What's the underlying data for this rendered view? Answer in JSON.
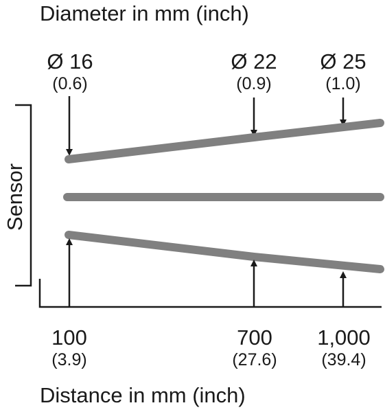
{
  "title": "Diameter in mm (inch)",
  "side_label": "Sensor",
  "bottom_label": "Distance in mm (inch)",
  "colors": {
    "beam": "#808080",
    "ink": "#1a1a1a",
    "background": "#ffffff"
  },
  "diameters": [
    {
      "mm": "Ø 16",
      "inch": "(0.6)"
    },
    {
      "mm": "Ø 22",
      "inch": "(0.9)"
    },
    {
      "mm": "Ø 25",
      "inch": "(1.0)"
    }
  ],
  "distances": [
    {
      "mm": "100",
      "inch": "(3.9)"
    },
    {
      "mm": "700",
      "inch": "(27.6)"
    },
    {
      "mm": "1,000",
      "inch": "(39.4)"
    }
  ]
}
